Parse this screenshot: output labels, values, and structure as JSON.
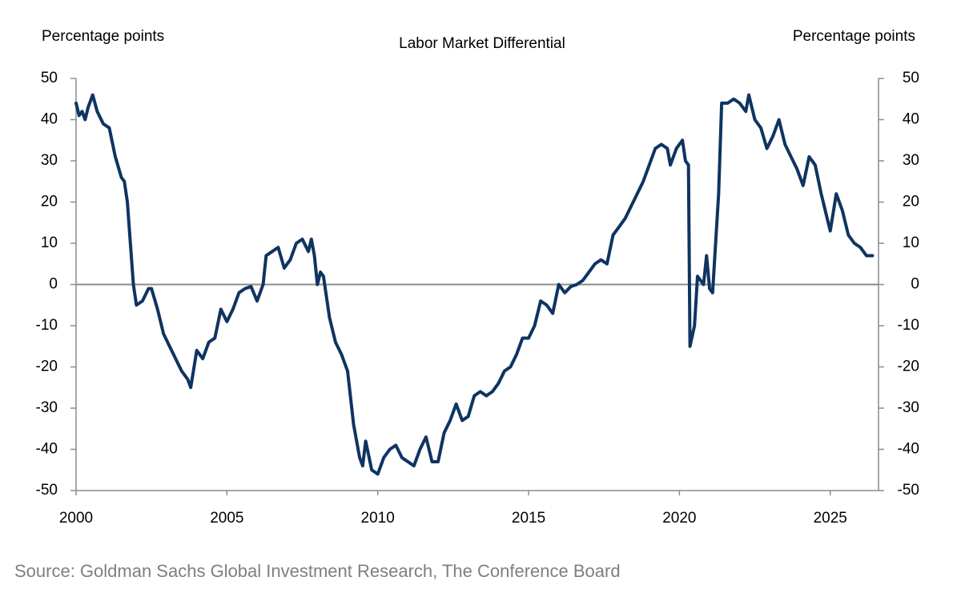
{
  "chart_data": {
    "type": "line",
    "title": "Labor Market Differential",
    "ylabel": "Percentage points",
    "y2label": "Percentage points",
    "source": "Source: Goldman Sachs Global Investment Research, The Conference Board",
    "color": "#0f3461",
    "reference_line": 0,
    "xlim": [
      2000,
      2026.6
    ],
    "xticks": [
      2000,
      2005,
      2010,
      2015,
      2020,
      2025
    ],
    "ylim": [
      -50,
      50
    ],
    "yticks": [
      -50,
      -40,
      -30,
      -20,
      -10,
      0,
      10,
      20,
      30,
      40,
      50
    ],
    "y2lim": [
      -50,
      50
    ],
    "y2ticks": [
      -50,
      -40,
      -30,
      -20,
      -10,
      0,
      10,
      20,
      30,
      40,
      50
    ],
    "x": [
      2000.0,
      2000.1,
      2000.2,
      2000.3,
      2000.4,
      2000.55,
      2000.7,
      2000.9,
      2001.1,
      2001.3,
      2001.5,
      2001.6,
      2001.7,
      2001.8,
      2001.9,
      2002.0,
      2002.2,
      2002.4,
      2002.5,
      2002.7,
      2002.9,
      2003.1,
      2003.3,
      2003.5,
      2003.7,
      2003.8,
      2004.0,
      2004.2,
      2004.4,
      2004.6,
      2004.8,
      2005.0,
      2005.2,
      2005.4,
      2005.6,
      2005.8,
      2006.0,
      2006.2,
      2006.3,
      2006.5,
      2006.7,
      2006.9,
      2007.1,
      2007.3,
      2007.5,
      2007.7,
      2007.8,
      2007.9,
      2008.0,
      2008.1,
      2008.2,
      2008.4,
      2008.6,
      2008.8,
      2009.0,
      2009.2,
      2009.4,
      2009.5,
      2009.6,
      2009.8,
      2010.0,
      2010.2,
      2010.4,
      2010.6,
      2010.8,
      2011.0,
      2011.2,
      2011.4,
      2011.6,
      2011.8,
      2012.0,
      2012.2,
      2012.4,
      2012.6,
      2012.8,
      2013.0,
      2013.2,
      2013.4,
      2013.6,
      2013.8,
      2014.0,
      2014.2,
      2014.4,
      2014.6,
      2014.8,
      2015.0,
      2015.2,
      2015.4,
      2015.6,
      2015.8,
      2016.0,
      2016.2,
      2016.4,
      2016.6,
      2016.8,
      2017.0,
      2017.2,
      2017.4,
      2017.6,
      2017.8,
      2018.0,
      2018.2,
      2018.4,
      2018.6,
      2018.8,
      2019.0,
      2019.2,
      2019.4,
      2019.6,
      2019.7,
      2019.9,
      2020.1,
      2020.2,
      2020.3,
      2020.35,
      2020.5,
      2020.6,
      2020.8,
      2020.9,
      2021.0,
      2021.1,
      2021.3,
      2021.4,
      2021.6,
      2021.8,
      2022.0,
      2022.2,
      2022.3,
      2022.5,
      2022.7,
      2022.9,
      2023.1,
      2023.3,
      2023.5,
      2023.7,
      2023.9,
      2024.1,
      2024.3,
      2024.5,
      2024.7,
      2024.9,
      2025.0,
      2025.2,
      2025.4,
      2025.6,
      2025.8,
      2026.0,
      2026.2,
      2026.4
    ],
    "values": [
      44,
      41,
      42,
      40,
      43,
      46,
      42,
      39,
      38,
      31,
      26,
      25,
      20,
      10,
      0,
      -5,
      -4,
      -1,
      -1,
      -6,
      -12,
      -15,
      -18,
      -21,
      -23,
      -25,
      -16,
      -18,
      -14,
      -13,
      -6,
      -9,
      -6,
      -2,
      -1,
      -0.5,
      -4,
      0,
      7,
      8,
      9,
      4,
      6,
      10,
      11,
      8,
      11,
      7,
      0,
      3,
      2,
      -8,
      -14,
      -17,
      -21,
      -34,
      -42,
      -44,
      -38,
      -45,
      -46,
      -42,
      -40,
      -39,
      -42,
      -43,
      -44,
      -40,
      -37,
      -43,
      -43,
      -36,
      -33,
      -29,
      -33,
      -32,
      -27,
      -26,
      -27,
      -26,
      -24,
      -21,
      -20,
      -17,
      -13,
      -13,
      -10,
      -4,
      -5,
      -7,
      0,
      -2,
      -0.5,
      0,
      1,
      3,
      5,
      6,
      5,
      12,
      14,
      16,
      19,
      22,
      25,
      29,
      33,
      34,
      33,
      29,
      33,
      35,
      30,
      29,
      -15,
      -10,
      2,
      0,
      7,
      -1,
      -2,
      22,
      44,
      44,
      45,
      44,
      42,
      46,
      40,
      38,
      33,
      36,
      40,
      34,
      31,
      28,
      24,
      31,
      29,
      22,
      16,
      13,
      22,
      18,
      12,
      10,
      9,
      7,
      7
    ]
  }
}
